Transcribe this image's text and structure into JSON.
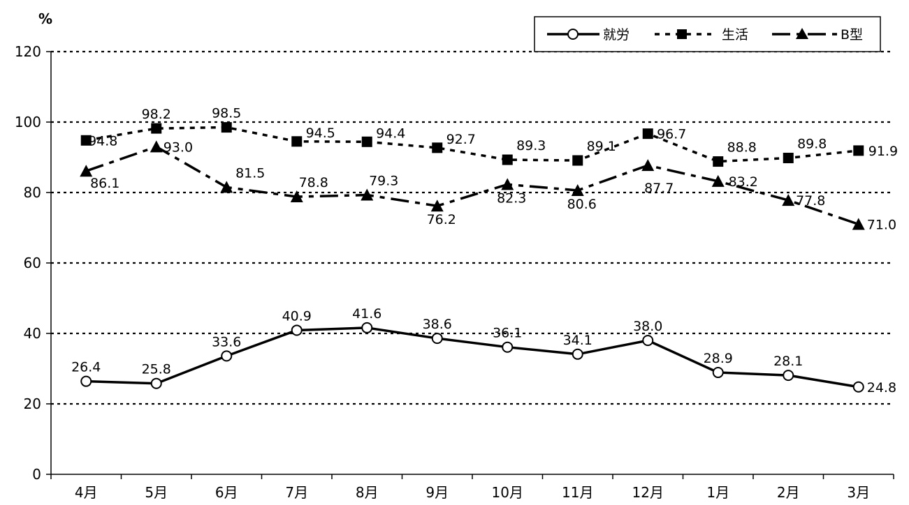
{
  "chart_data": {
    "type": "line",
    "ylabel": "%",
    "ylim": [
      0,
      120
    ],
    "yticks": [
      0,
      20,
      40,
      60,
      80,
      100,
      120
    ],
    "categories": [
      "4月",
      "5月",
      "6月",
      "7月",
      "8月",
      "9月",
      "10月",
      "11月",
      "12月",
      "1月",
      "2月",
      "3月"
    ],
    "grid": true,
    "legend_position": "top-right",
    "series": [
      {
        "name": "就労",
        "marker": "circle-open",
        "line_style": "solid",
        "color": "#000000",
        "values": [
          26.4,
          25.8,
          33.6,
          40.9,
          41.6,
          38.6,
          36.1,
          34.1,
          38.0,
          28.9,
          28.1,
          24.8
        ],
        "labels": [
          "26.4",
          "25.8",
          "33.6",
          "40.9",
          "41.6",
          "38.6",
          "36.1",
          "34.1",
          "38.0",
          "28.9",
          "28.1",
          "24.8"
        ]
      },
      {
        "name": "生活",
        "marker": "square",
        "line_style": "dotted",
        "color": "#000000",
        "values": [
          94.8,
          98.2,
          98.5,
          94.5,
          94.4,
          92.7,
          89.3,
          89.1,
          96.7,
          88.8,
          89.8,
          91.9
        ],
        "labels": [
          "94.8",
          "98.2",
          "98.5",
          "94.5",
          "94.4",
          "92.7",
          "89.3",
          "89.1",
          "96.7",
          "88.8",
          "89.8",
          "91.9"
        ]
      },
      {
        "name": "B型",
        "marker": "triangle",
        "line_style": "dashed",
        "color": "#000000",
        "values": [
          86.1,
          93.0,
          81.5,
          78.8,
          79.3,
          76.2,
          82.3,
          80.6,
          87.7,
          83.2,
          77.8,
          71.0
        ],
        "labels": [
          "86.1",
          "93.0",
          "81.5",
          "78.8",
          "79.3",
          "76.2",
          "82.3",
          "80.6",
          "87.7",
          "83.2",
          "77.8",
          "71.0"
        ]
      }
    ]
  }
}
